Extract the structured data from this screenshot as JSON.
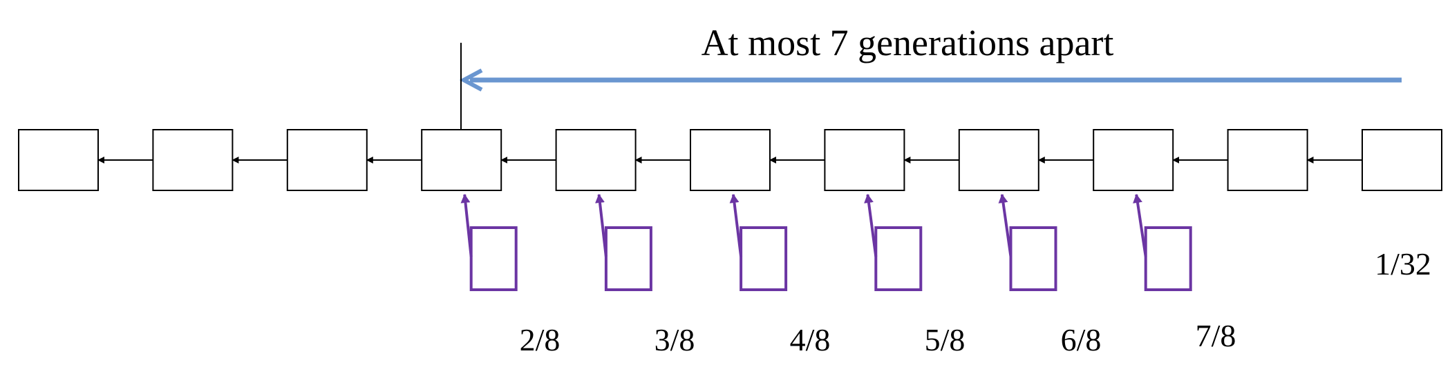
{
  "title": "At most 7 generations apart",
  "fraction_labels": [
    "2/8",
    "3/8",
    "4/8",
    "5/8",
    "6/8",
    "7/8"
  ],
  "right_label": "1/32",
  "colors": {
    "chain_stroke": "#000000",
    "span_arrow": "#6a96d0",
    "side_blocks": "#6b35a3"
  },
  "chain": {
    "block_count": 11
  }
}
